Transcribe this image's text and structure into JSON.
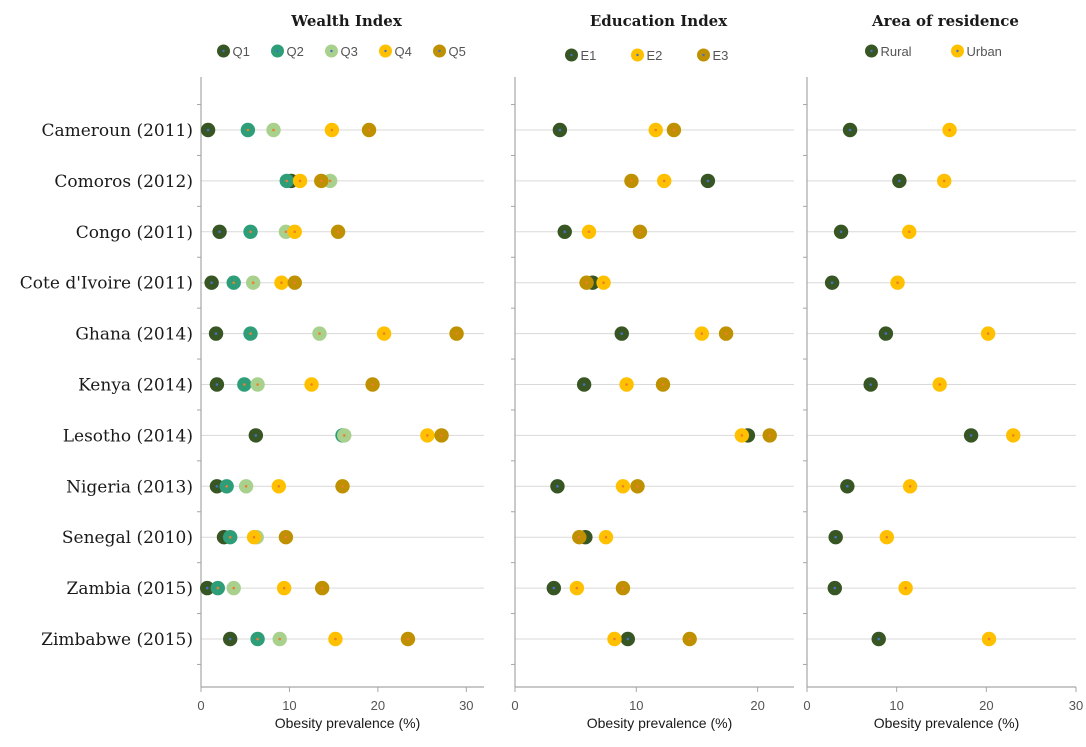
{
  "chart_data": {
    "type": "scatter",
    "countries": [
      "Cameroun (2011)",
      "Comoros (2012)",
      "Congo (2011)",
      "Cote d'Ivoire (2011)",
      "Ghana (2014)",
      "Kenya (2014)",
      "Lesotho (2014)",
      "Nigeria (2013)",
      "Senegal (2010)",
      "Zambia (2015)",
      "Zimbabwe (2015)"
    ],
    "xlabel": "Obesity prevalence (%)",
    "panels": [
      {
        "title": "Wealth Index",
        "xlim": [
          0,
          32
        ],
        "xticks": [
          0,
          10,
          20,
          30
        ],
        "series": [
          {
            "name": "Q1",
            "color": "#375623",
            "values": [
              0.8,
              10.2,
              2.1,
              1.2,
              1.7,
              1.8,
              6.2,
              1.8,
              2.6,
              0.7,
              3.3
            ]
          },
          {
            "name": "Q2",
            "color": "#2e9e78",
            "values": [
              5.3,
              9.7,
              5.6,
              3.7,
              5.6,
              4.9,
              16.0,
              2.9,
              3.3,
              1.9,
              6.4
            ]
          },
          {
            "name": "Q3",
            "color": "#a9d18e",
            "values": [
              8.2,
              14.6,
              9.6,
              5.9,
              13.4,
              6.4,
              16.2,
              5.1,
              6.3,
              3.7,
              8.9
            ]
          },
          {
            "name": "Q4",
            "color": "#ffc000",
            "values": [
              14.8,
              11.2,
              10.6,
              9.1,
              20.7,
              12.5,
              25.6,
              8.8,
              6.0,
              9.4,
              15.2
            ]
          },
          {
            "name": "Q5",
            "color": "#bf9000",
            "values": [
              19.0,
              13.6,
              15.5,
              10.6,
              28.9,
              19.4,
              27.2,
              16.0,
              9.6,
              13.7,
              23.4
            ]
          }
        ]
      },
      {
        "title": "Education Index",
        "xlim": [
          0,
          23
        ],
        "xticks": [
          0,
          10,
          20
        ],
        "series": [
          {
            "name": "E1",
            "color": "#375623",
            "values": [
              3.7,
              15.9,
              4.1,
              6.4,
              8.8,
              5.7,
              19.2,
              3.5,
              5.8,
              3.2,
              9.3
            ]
          },
          {
            "name": "E2",
            "color": "#ffc000",
            "values": [
              11.6,
              12.3,
              6.1,
              7.3,
              15.4,
              9.2,
              18.7,
              8.9,
              7.5,
              5.1,
              8.2
            ]
          },
          {
            "name": "E3",
            "color": "#bf9000",
            "values": [
              13.1,
              9.6,
              10.3,
              5.9,
              17.4,
              12.2,
              21.0,
              10.1,
              5.3,
              8.9,
              14.4
            ]
          }
        ]
      },
      {
        "title": "Area of residence",
        "xlim": [
          0,
          30
        ],
        "xticks": [
          0,
          10,
          20,
          30
        ],
        "series": [
          {
            "name": "Rural",
            "color": "#375623",
            "values": [
              4.8,
              10.3,
              3.8,
              2.8,
              8.8,
              7.1,
              18.3,
              4.5,
              3.2,
              3.1,
              8.0
            ]
          },
          {
            "name": "Urban",
            "color": "#ffc000",
            "values": [
              15.9,
              15.3,
              11.4,
              10.1,
              20.2,
              14.8,
              23.0,
              11.5,
              8.9,
              11.0,
              20.3
            ]
          }
        ]
      }
    ]
  }
}
